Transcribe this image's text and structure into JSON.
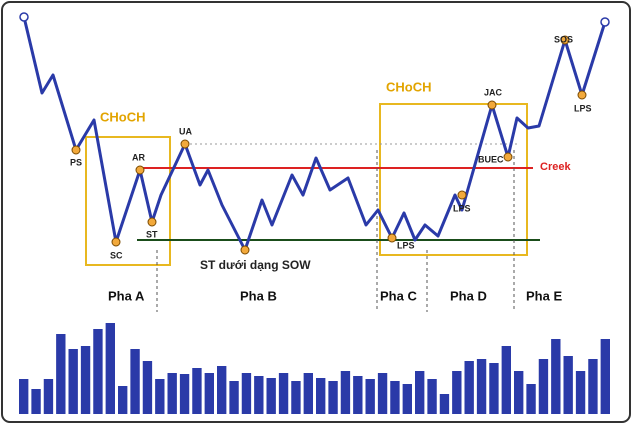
{
  "labels": {
    "choch_left": "CHoCH",
    "choch_right": "CHoCH",
    "ps": "PS",
    "sc": "SC",
    "ar": "AR",
    "st": "ST",
    "ua": "UA",
    "st_sow": "ST dưới dạng SOW",
    "lps_c": "LPS",
    "lps_d": "LPS",
    "jac": "JAC",
    "buec": "BUEC",
    "creek": "Creek",
    "sos": "SOS",
    "lps_e": "LPS"
  },
  "phases": [
    "Pha A",
    "Pha B",
    "Pha C",
    "Pha D",
    "Pha E"
  ],
  "volume": [
    35,
    25,
    35,
    80,
    65,
    68,
    85,
    91,
    28,
    65,
    53,
    35,
    41,
    40,
    46,
    41,
    48,
    33,
    41,
    38,
    36,
    41,
    33,
    41,
    36,
    33,
    43,
    38,
    35,
    41,
    33,
    30,
    43,
    35,
    20,
    43,
    53,
    55,
    51,
    68,
    43,
    30,
    55,
    75,
    58,
    43,
    55,
    75
  ]
}
